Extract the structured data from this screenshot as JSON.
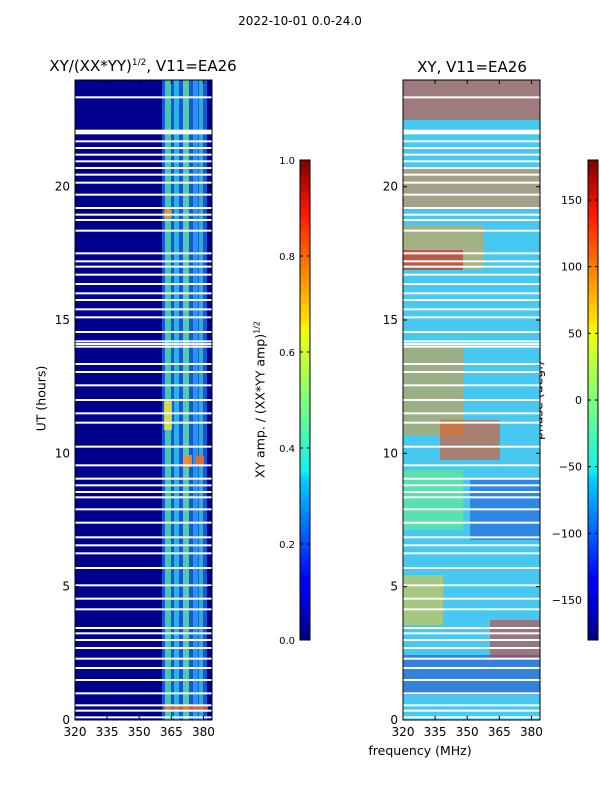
{
  "suptitle": "2022-10-01 0.0-24.0",
  "chart_data": [
    {
      "type": "heatmap",
      "title_main": "XY/(XX*YY)",
      "title_sup": "1/2",
      "title_tail": ", V11=EA26",
      "ylabel": "UT (hours)",
      "xlabel": "",
      "xlim": [
        320,
        384
      ],
      "ylim": [
        0,
        24
      ],
      "xticks": [
        320,
        335,
        350,
        365,
        380
      ],
      "yticks": [
        0,
        5,
        10,
        15,
        20
      ],
      "colorbar": {
        "label_main": "XY amp. / (XX*YY amp)",
        "label_sup": "1/2",
        "range": [
          0.0,
          1.0
        ],
        "ticks": [
          "0.0",
          "0.2",
          "0.4",
          "0.6",
          "0.8",
          "1.0"
        ],
        "tick_values": [
          0.0,
          0.2,
          0.4,
          0.6,
          0.8,
          1.0
        ],
        "colormap": "jet"
      }
    },
    {
      "type": "heatmap",
      "title_main": "XY, V11=EA26",
      "xlabel": "frequency (MHz)",
      "ylabel": "",
      "xlim": [
        320,
        384
      ],
      "ylim": [
        0,
        24
      ],
      "xticks": [
        320,
        335,
        350,
        365,
        380
      ],
      "yticks": [
        0,
        5,
        10,
        15,
        20
      ],
      "colorbar": {
        "label_main": "phase (deg.)",
        "range": [
          -180,
          180
        ],
        "ticks": [
          "150",
          "100",
          "50",
          "0",
          "−50",
          "−100",
          "−150"
        ],
        "tick_values": [
          150,
          100,
          50,
          0,
          -50,
          -100,
          -150
        ],
        "colormap": "jet"
      }
    }
  ],
  "flagged_rows_hours": [
    0.1,
    0.35,
    0.55,
    1.0,
    1.5,
    1.95,
    2.3,
    2.7,
    3.0,
    3.25,
    3.45,
    4.15,
    4.55,
    5.05,
    5.7,
    6.25,
    6.55,
    6.85,
    7.4,
    7.9,
    8.35,
    8.55,
    8.8,
    9.05,
    9.55,
    10.25,
    11.15,
    11.5,
    12.0,
    12.55,
    13.05,
    13.35,
    14.0,
    14.1,
    14.2,
    14.55,
    15.1,
    15.4,
    15.75,
    16.0,
    16.35,
    16.7,
    17.0,
    17.2,
    17.5,
    18.35,
    18.75,
    18.95,
    19.2,
    19.7,
    20.15,
    20.45,
    20.7,
    20.95,
    21.2,
    21.45,
    21.7,
    22.0,
    22.05,
    22.1,
    23.35
  ]
}
